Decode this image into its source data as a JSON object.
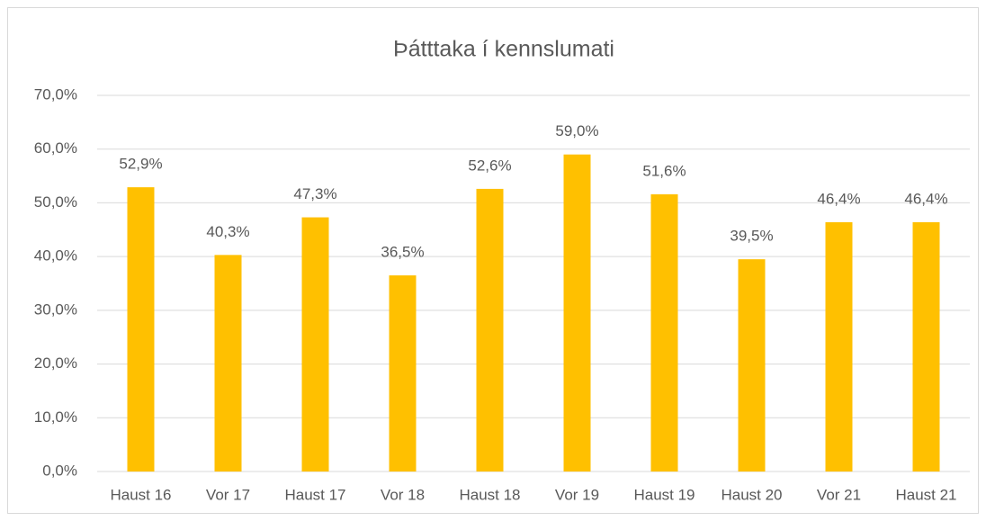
{
  "chart_data": {
    "type": "bar",
    "title": "Þátttaka í kennslumati",
    "categories": [
      "Haust 16",
      "Vor 17",
      "Haust 17",
      "Vor 18",
      "Haust 18",
      "Vor 19",
      "Haust 19",
      "Haust 20",
      "Vor 21",
      "Haust 21"
    ],
    "values": [
      52.9,
      40.3,
      47.3,
      36.5,
      52.6,
      59.0,
      51.6,
      39.5,
      46.4,
      46.4
    ],
    "value_labels": [
      "52,9%",
      "40,3%",
      "47,3%",
      "36,5%",
      "52,6%",
      "59,0%",
      "51,6%",
      "39,5%",
      "46,4%",
      "46,4%"
    ],
    "color": "#ffc000",
    "ylim": [
      0,
      70
    ],
    "yticks": [
      {
        "value": 0,
        "label": "0,0%"
      },
      {
        "value": 10,
        "label": "10,0%"
      },
      {
        "value": 20,
        "label": "20,0%"
      },
      {
        "value": 30,
        "label": "30,0%"
      },
      {
        "value": 40,
        "label": "40,0%"
      },
      {
        "value": 50,
        "label": "50,0%"
      },
      {
        "value": 60,
        "label": "60,0%"
      },
      {
        "value": 70,
        "label": "70,0%"
      }
    ],
    "grid": true
  }
}
